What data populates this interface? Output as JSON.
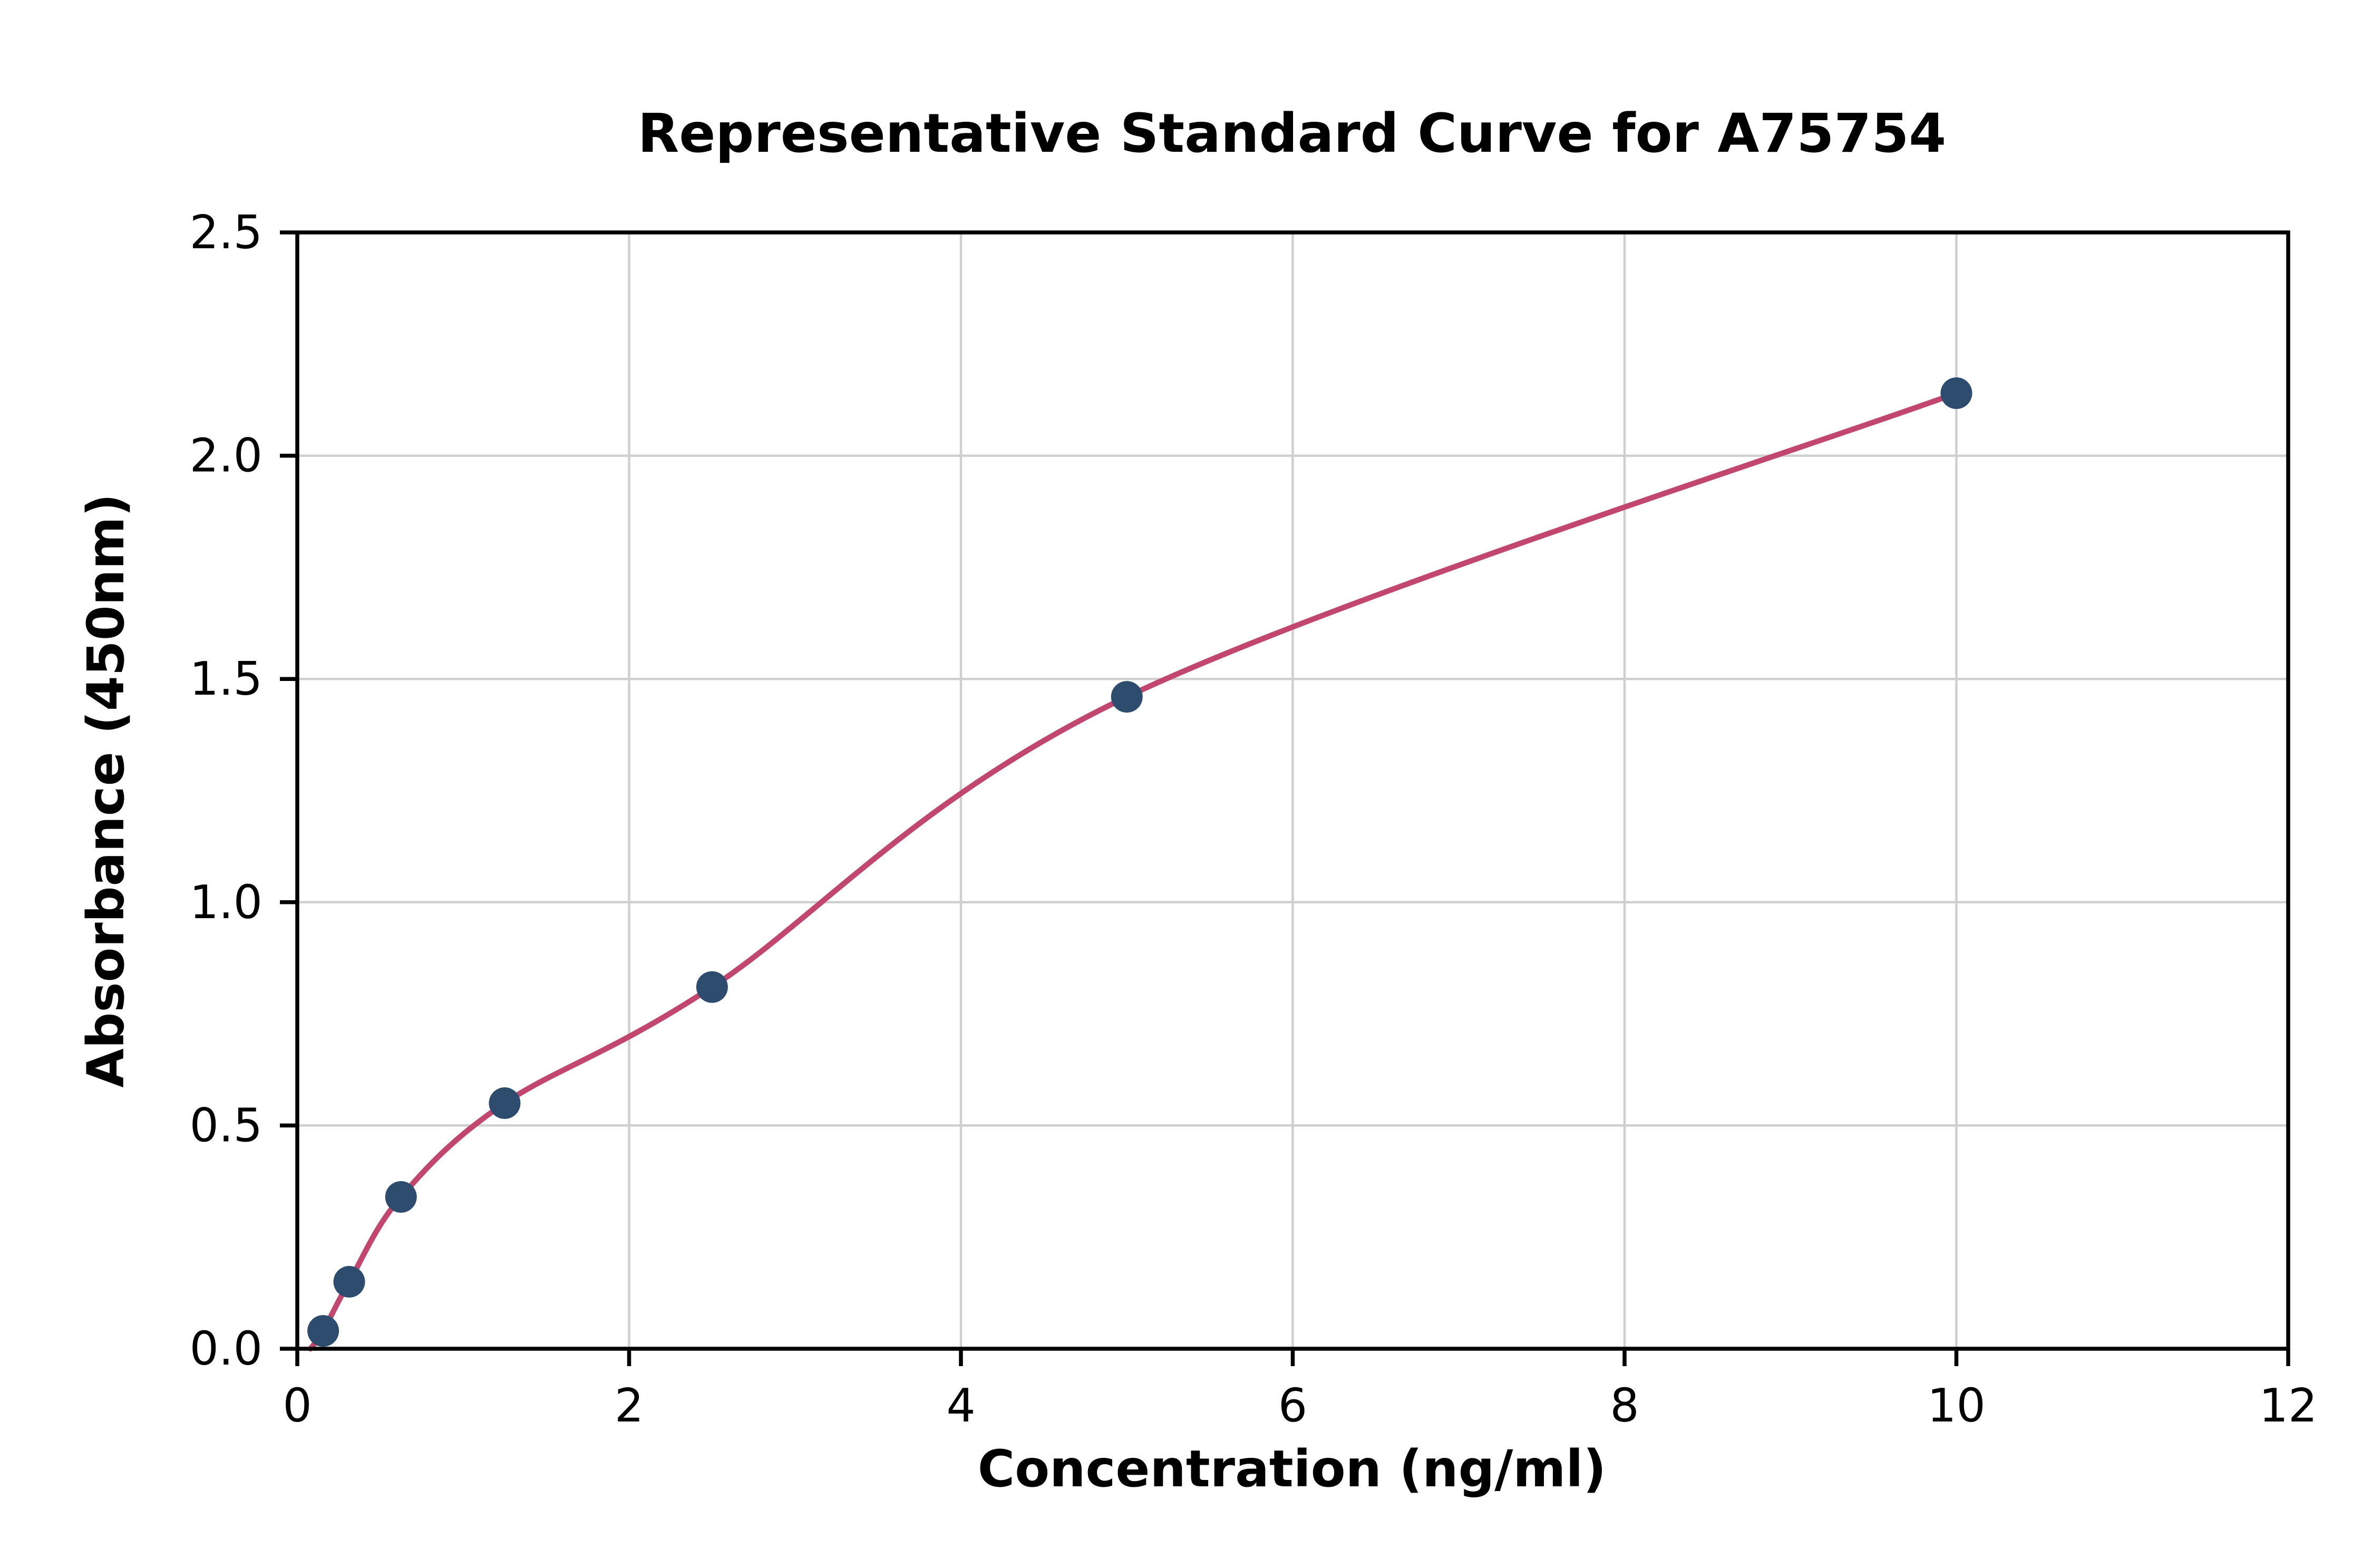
{
  "page": {
    "background": "#ffffff"
  },
  "chart_data": {
    "type": "scatter",
    "title": "Representative Standard Curve for A75754",
    "xlabel": "Concentration (ng/ml)",
    "ylabel": "Absorbance (450nm)",
    "xlim": [
      0,
      12
    ],
    "ylim": [
      0,
      2.5
    ],
    "xticks": [
      0,
      2,
      4,
      6,
      8,
      10,
      12
    ],
    "xtick_labels": [
      "0",
      "2",
      "4",
      "6",
      "8",
      "10",
      "12"
    ],
    "yticks": [
      0,
      0.5,
      1.0,
      1.5,
      2.0,
      2.5
    ],
    "ytick_labels": [
      "0.0",
      "0.5",
      "1.0",
      "1.5",
      "2.0",
      "2.5"
    ],
    "grid": true,
    "legend_position": "none",
    "series": [
      {
        "name": "standard-points",
        "type": "scatter",
        "color": "#2e4d6e",
        "points": [
          [
            0.156,
            0.04
          ],
          [
            0.313,
            0.15
          ],
          [
            0.625,
            0.34
          ],
          [
            1.25,
            0.55
          ],
          [
            2.5,
            0.81
          ],
          [
            5,
            1.46
          ],
          [
            10,
            2.14
          ]
        ]
      },
      {
        "name": "fitted-curve",
        "type": "line",
        "color": "#c2476f",
        "curve_start": [
          0.08,
          0.0
        ],
        "through_points": true
      }
    ],
    "colors": {
      "grid": "#cfcfcf",
      "axis": "#000000",
      "text": "#000000",
      "plot_background": "#ffffff"
    }
  }
}
